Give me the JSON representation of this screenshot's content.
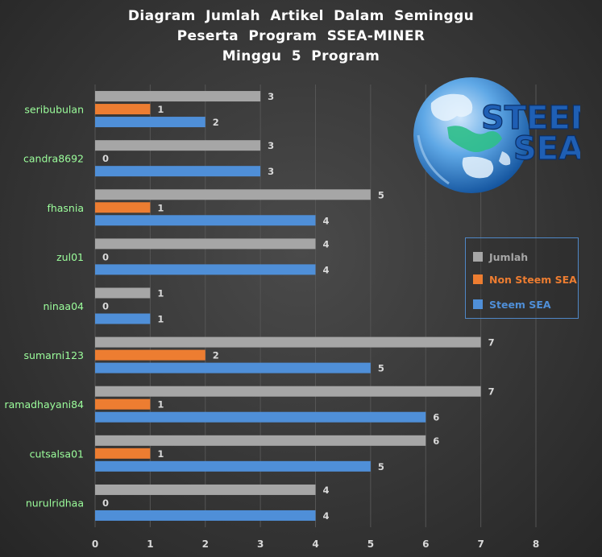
{
  "chart_data": {
    "type": "bar",
    "orientation": "horizontal",
    "title": [
      "Diagram Jumlah Artikel Dalam Seminggu",
      "Peserta Program SSEA-MINER",
      "Minggu 5 Program"
    ],
    "categories": [
      "seribubulan",
      "candra8692",
      "fhasnia",
      "zul01",
      "ninaa04",
      "sumarni123",
      "ramadhayani84",
      "cutsalsa01",
      "nurulridhaa"
    ],
    "series": [
      {
        "name": "Jumlah",
        "color": "#a6a6a6",
        "values": [
          3,
          3,
          5,
          4,
          1,
          7,
          7,
          6,
          4
        ]
      },
      {
        "name": "Non Steem SEA",
        "color": "#ed7d31",
        "values": [
          1,
          0,
          1,
          0,
          0,
          2,
          1,
          1,
          0
        ]
      },
      {
        "name": "Steem SEA",
        "color": "#4f8fd8",
        "values": [
          2,
          3,
          4,
          4,
          1,
          5,
          6,
          5,
          4
        ]
      }
    ],
    "xlim": [
      0,
      8
    ],
    "xticks": [
      0,
      1,
      2,
      3,
      4,
      5,
      6,
      7,
      8
    ],
    "xlabel": "",
    "ylabel": "",
    "grid": true,
    "legend_position": "right",
    "category_label_color": "#9cff9c"
  },
  "legend": {
    "items": [
      {
        "label": "Jumlah",
        "color": "#a6a6a6",
        "text_color": "#a6a6a6"
      },
      {
        "label": "Non Steem SEA",
        "color": "#ed7d31",
        "text_color": "#ed7d31"
      },
      {
        "label": "Steem SEA",
        "color": "#4f8fd8",
        "text_color": "#4f8fd8"
      }
    ]
  },
  "logo": {
    "line1": "STEEM",
    "line2": "SEA"
  }
}
